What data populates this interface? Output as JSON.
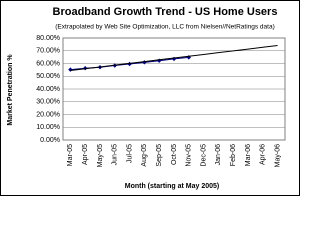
{
  "chart_data": {
    "type": "line",
    "title": "Broadband Growth Trend - US Home Users",
    "subtitle": "(Extrapolated by Web Site Optimization, LLC from Nielsen//NetRatings data)",
    "x_label": "Month (starting at May 2005)",
    "y_label": "Market Penetration %",
    "categories": [
      "Mar-05",
      "Apr-05",
      "May-05",
      "Jun-05",
      "Jul-05",
      "Aug-05",
      "Sep-05",
      "Oct-05",
      "Nov-05",
      "Dec-05",
      "Jan-06",
      "Feb-06",
      "Mar-06",
      "Apr-06",
      "May-06"
    ],
    "series": [
      {
        "color": "#000080",
        "markers": true,
        "values": [
          55.2,
          56.3,
          57.1,
          58.4,
          59.6,
          60.9,
          62.2,
          63.6,
          64.8,
          null,
          null,
          null,
          null,
          null,
          null
        ]
      },
      {
        "color": "#000000",
        "markers": false,
        "values": [
          54.5,
          55.9,
          57.3,
          58.7,
          60.1,
          61.5,
          62.9,
          64.3,
          65.7,
          67.1,
          68.5,
          69.9,
          71.3,
          72.7,
          74.1
        ]
      }
    ],
    "ylim": [
      0,
      80
    ],
    "yticks": [
      {
        "value": 0,
        "label": "0.00%"
      },
      {
        "value": 10,
        "label": "10.00%"
      },
      {
        "value": 20,
        "label": "20.00%"
      },
      {
        "value": 30,
        "label": "30.00%"
      },
      {
        "value": 40,
        "label": "40.00%"
      },
      {
        "value": 50,
        "label": "50.00%"
      },
      {
        "value": 60,
        "label": "60.00%"
      },
      {
        "value": 70,
        "label": "70.00%"
      },
      {
        "value": 80,
        "label": "80.00%"
      }
    ],
    "grid": true
  }
}
